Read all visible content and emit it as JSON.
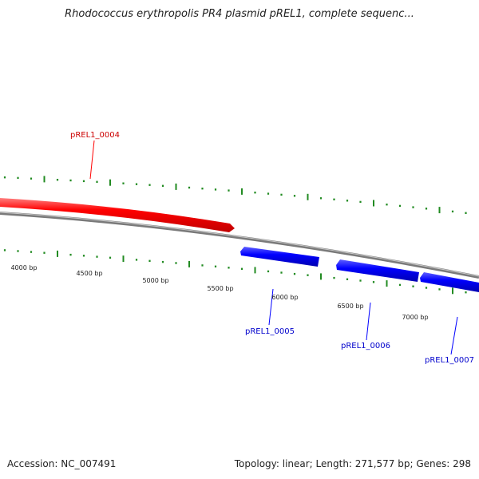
{
  "title": "Rhodococcus erythropolis PR4 plasmid pREL1, complete sequenc...",
  "footer": {
    "accession": "Accession: NC_007491",
    "summary": "Topology: linear; Length: 271,577 bp; Genes: 298"
  },
  "colors": {
    "forward_gene": "#ff0000",
    "reverse_gene": "#0000ff",
    "backbone": "#808080",
    "ticks": "#228b22",
    "labels": "#222222"
  },
  "scale_labels": [
    "4000 bp",
    "4500 bp",
    "5000 bp",
    "5500 bp",
    "6000 bp",
    "6500 bp",
    "7000 bp"
  ],
  "genes": [
    {
      "name": "pREL1_0004",
      "strand": "+"
    },
    {
      "name": "pREL1_0005",
      "strand": "-"
    },
    {
      "name": "pREL1_0006",
      "strand": "-"
    },
    {
      "name": "pREL1_0007",
      "strand": "-"
    }
  ]
}
